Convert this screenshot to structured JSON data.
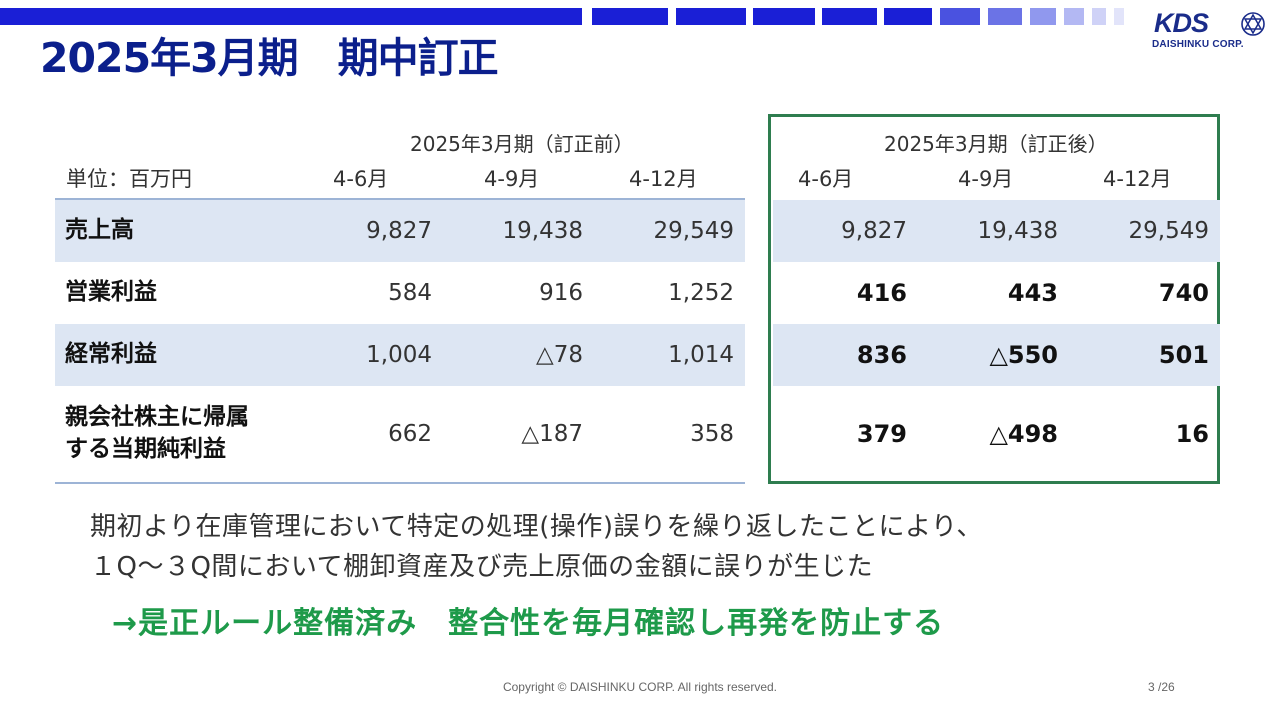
{
  "title": "2025年3月期　期中訂正",
  "logo": {
    "mark": "KDS",
    "company": "DAISHINKU CORP."
  },
  "table": {
    "unit_label": "単位：百万円",
    "before_header": "2025年3月期（訂正前）",
    "after_header": "2025年3月期（訂正後）",
    "periods": [
      "4-6月",
      "4-9月",
      "4-12月"
    ],
    "rows": [
      {
        "label": "売上高",
        "label2": "",
        "before": [
          "9,827",
          "19,438",
          "29,549"
        ],
        "after": [
          "9,827",
          "19,438",
          "29,549"
        ],
        "after_bold": false
      },
      {
        "label": "営業利益",
        "label2": "",
        "before": [
          "584",
          "916",
          "1,252"
        ],
        "after": [
          "416",
          "443",
          "740"
        ],
        "after_bold": true
      },
      {
        "label": "経常利益",
        "label2": "",
        "before": [
          "1,004",
          "△78",
          "1,014"
        ],
        "after": [
          "836",
          "△550",
          "501"
        ],
        "after_bold": true
      },
      {
        "label": "親会社株主に帰属",
        "label2": "する当期純利益",
        "before": [
          "662",
          "△187",
          "358"
        ],
        "after": [
          "379",
          "△498",
          "16"
        ],
        "after_bold": true
      }
    ]
  },
  "notes": {
    "line1": "期初より在庫管理において特定の処理(操作)誤りを繰り返したことにより、",
    "line2": "１Q～３Q間において棚卸資産及び売上原価の金額に誤りが生じた",
    "action": "→是正ルール整備済み　整合性を毎月確認し再発を防止する"
  },
  "footer": {
    "copyright": "Copyright © DAISHINKU CORP. All rights reserved.",
    "page": "3 /26"
  },
  "colors": {
    "title": "#0b1f8c",
    "accent_green": "#1e9a4a",
    "box_green": "#2e7d4f",
    "row_shade": "#dde6f3"
  }
}
